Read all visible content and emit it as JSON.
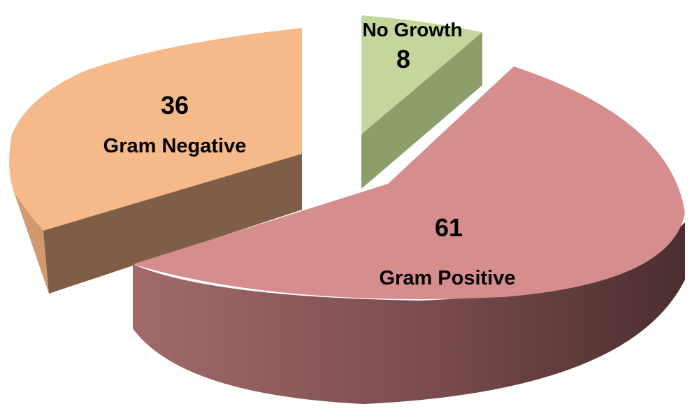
{
  "chart_data": {
    "type": "pie",
    "style": "3d-exploded",
    "slices": [
      {
        "label": "Gram Positive",
        "value": 61,
        "color": "#D58D8D"
      },
      {
        "label": "Gram Negative",
        "value": 36,
        "color": "#F5B98A"
      },
      {
        "label": "No Growth",
        "value": 8,
        "color": "#C4D69B"
      }
    ],
    "legend": "none",
    "data_labels": "inside"
  }
}
